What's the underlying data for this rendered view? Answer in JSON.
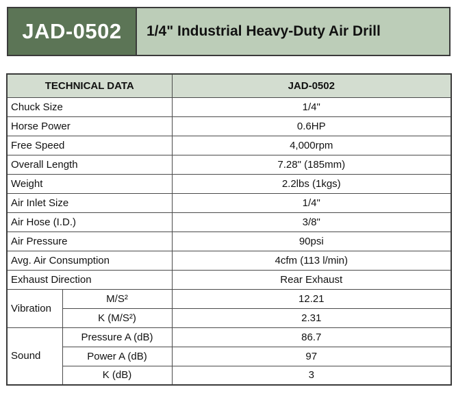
{
  "header": {
    "model": "JAD-0502",
    "title": "1/4\" Industrial Heavy-Duty Air Drill"
  },
  "table": {
    "col1_header": "TECHNICAL DATA",
    "col2_header": "JAD-0502",
    "rows": [
      {
        "label": "Chuck Size",
        "value": "1/4\""
      },
      {
        "label": "Horse Power",
        "value": "0.6HP"
      },
      {
        "label": "Free Speed",
        "value": "4,000rpm"
      },
      {
        "label": "Overall Length",
        "value": "7.28\" (185mm)"
      },
      {
        "label": "Weight",
        "value": "2.2lbs (1kgs)"
      },
      {
        "label": "Air Inlet Size",
        "value": "1/4\""
      },
      {
        "label": "Air Hose (I.D.)",
        "value": "3/8\""
      },
      {
        "label": "Air Pressure",
        "value": "90psi"
      },
      {
        "label": "Avg. Air Consumption",
        "value": "4cfm (113 l/min)"
      },
      {
        "label": "Exhaust Direction",
        "value": "Rear Exhaust"
      }
    ],
    "vibration": {
      "label": "Vibration",
      "rows": [
        {
          "sub": "M/S²",
          "value": "12.21"
        },
        {
          "sub": "K (M/S²)",
          "value": "2.31"
        }
      ]
    },
    "sound": {
      "label": "Sound",
      "rows": [
        {
          "sub": "Pressure A (dB)",
          "value": "86.7"
        },
        {
          "sub": "Power A (dB)",
          "value": "97"
        },
        {
          "sub": "K (dB)",
          "value": "3"
        }
      ]
    }
  }
}
